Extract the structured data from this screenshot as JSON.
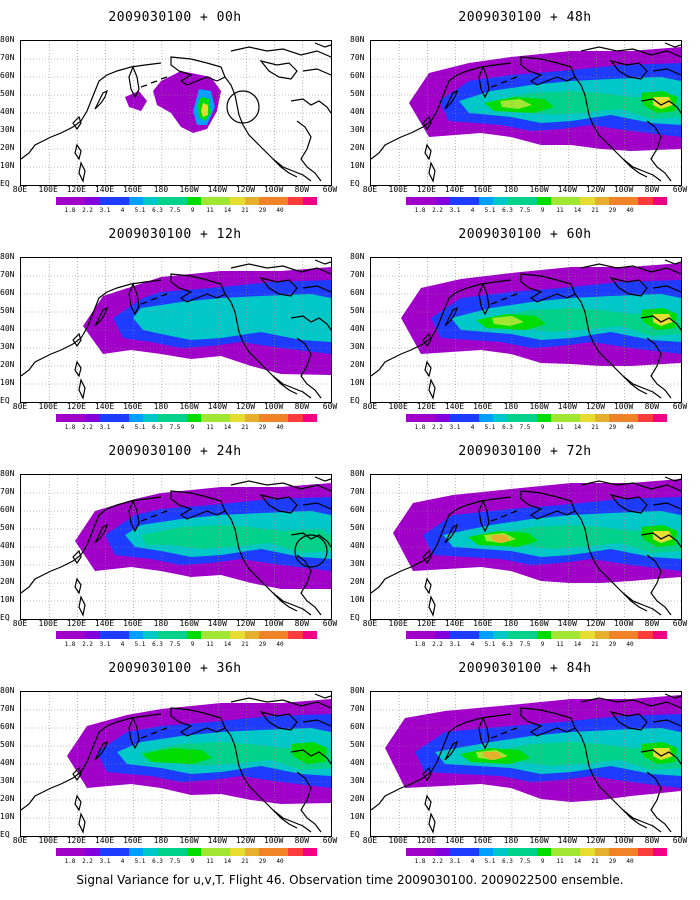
{
  "panels": [
    {
      "title": "2009030100 + 00h",
      "circle": true,
      "intensity": 0
    },
    {
      "title": "2009030100 + 48h",
      "circle": false,
      "intensity": 4
    },
    {
      "title": "2009030100 + 12h",
      "circle": false,
      "intensity": 1
    },
    {
      "title": "2009030100 + 60h",
      "circle": false,
      "intensity": 5
    },
    {
      "title": "2009030100 + 24h",
      "circle": true,
      "intensity": 2
    },
    {
      "title": "2009030100 + 72h",
      "circle": false,
      "intensity": 6
    },
    {
      "title": "2009030100 + 36h",
      "circle": false,
      "intensity": 3
    },
    {
      "title": "2009030100 + 84h",
      "circle": false,
      "intensity": 7
    }
  ],
  "lat_labels": [
    "80N",
    "70N",
    "60N",
    "50N",
    "40N",
    "30N",
    "20N",
    "10N",
    "EQ"
  ],
  "lon_labels": [
    "80E",
    "100E",
    "120E",
    "140E",
    "160E",
    "180",
    "160W",
    "140W",
    "120W",
    "100W",
    "80W",
    "60W"
  ],
  "colorbar": {
    "labels": [
      "1.8",
      "2.2",
      "3.1",
      "4",
      "5.1",
      "6.3",
      "7.5",
      "9",
      "11",
      "14",
      "21",
      "29",
      "40"
    ],
    "colors": [
      "#a000c8",
      "#8200dc",
      "#1e3cff",
      "#00a0ff",
      "#00c8c8",
      "#00d28c",
      "#00dc00",
      "#a0e632",
      "#e6dc32",
      "#e6af2d",
      "#f08228",
      "#fa3c3c",
      "#f00082"
    ]
  },
  "caption": "Signal Variance for u,v,T. Flight 46. Observation time 2009030100. 2009022500 ensemble."
}
